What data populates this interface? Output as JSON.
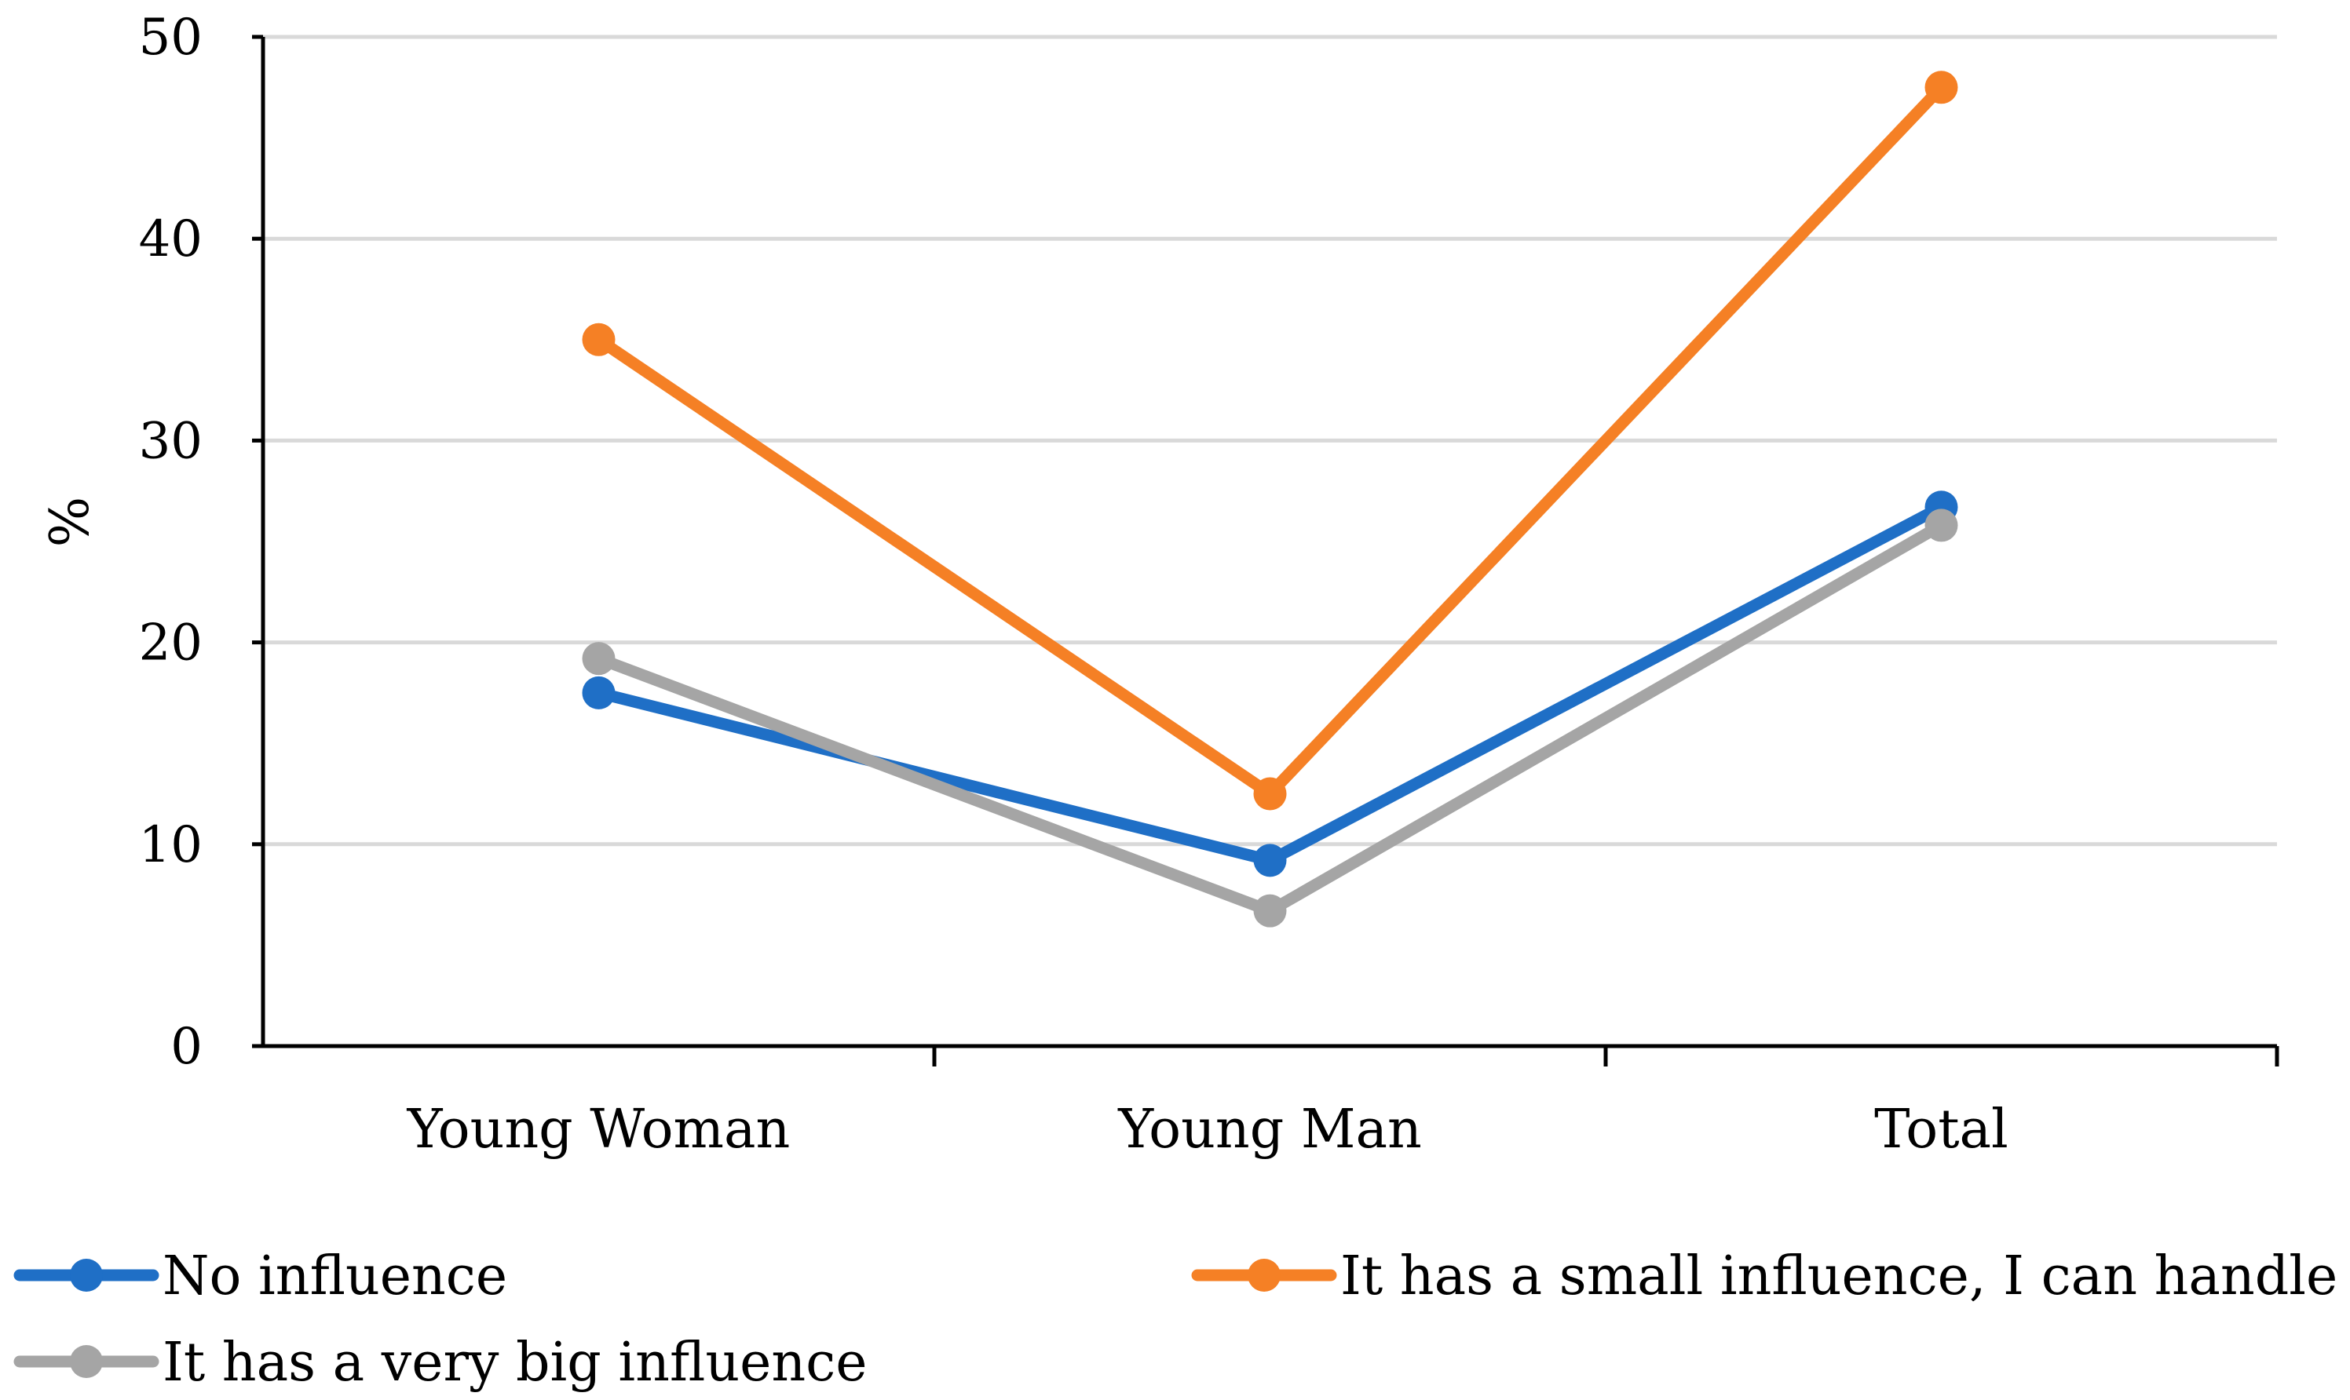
{
  "chart_data": {
    "type": "line",
    "title": "",
    "xlabel": "",
    "ylabel": "%",
    "ylim": [
      0,
      50
    ],
    "yticks": [
      0,
      10,
      20,
      30,
      40,
      50
    ],
    "ytick_labels": [
      "0",
      "10",
      "20",
      "30",
      "40",
      "50"
    ],
    "grid": true,
    "legend_position": "bottom",
    "categories": [
      "Young Woman",
      "Young Man",
      "Total"
    ],
    "series": [
      {
        "name": "No influence",
        "color": "#1f6fc6",
        "values": [
          17.5,
          9.2,
          26.7
        ]
      },
      {
        "name": "It has a small influence, I can handle it",
        "color": "#f58025",
        "values": [
          35.0,
          12.5,
          47.5
        ]
      },
      {
        "name": "It has a very big influence",
        "color": "#a5a5a5",
        "values": [
          19.2,
          6.7,
          25.8
        ]
      }
    ]
  }
}
